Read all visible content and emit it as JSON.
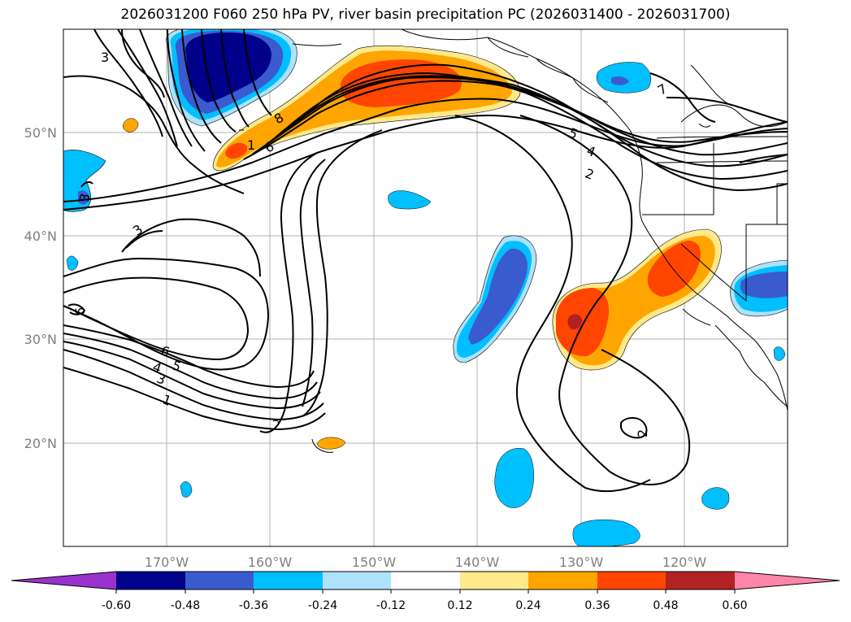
{
  "title": "2026031200 F060 250 hPa PV, river basin precipitation PC (2026031400 - 2026031700)",
  "map": {
    "lat_labels": [
      "50°N",
      "40°N",
      "30°N",
      "20°N"
    ],
    "lon_labels": [
      "170°W",
      "160°W",
      "150°W",
      "140°W",
      "130°W",
      "120°W"
    ],
    "pv_contour_labels": [
      "3",
      "8",
      "1",
      "6",
      "5",
      "4",
      "2",
      "7",
      "3",
      "6",
      "3",
      "6",
      "5",
      "4",
      "3",
      "1",
      "2"
    ]
  },
  "colorbar": {
    "tick_labels": [
      "-0.60",
      "-0.48",
      "-0.36",
      "-0.24",
      "-0.12",
      "0.12",
      "0.24",
      "0.36",
      "0.48",
      "0.60"
    ],
    "colors": [
      "#9932cc",
      "#00008b",
      "#3a5bcf",
      "#00bfff",
      "#aee2fb",
      "#ffffff",
      "#ffe98a",
      "#ffa500",
      "#ff4500",
      "#b22222",
      "#ff85aa"
    ]
  }
}
